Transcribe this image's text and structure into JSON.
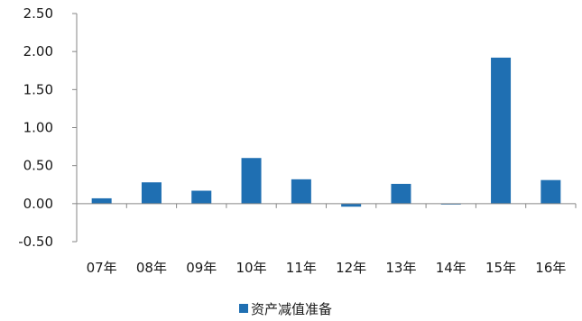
{
  "chart_data": {
    "type": "bar",
    "categories": [
      "07年",
      "08年",
      "09年",
      "10年",
      "11年",
      "12年",
      "13年",
      "14年",
      "15年",
      "16年"
    ],
    "series": [
      {
        "name": "资产减值准备",
        "color": "#1f6fb2",
        "values": [
          0.07,
          0.28,
          0.17,
          0.6,
          0.32,
          -0.04,
          0.26,
          -0.01,
          1.92,
          0.31
        ]
      }
    ],
    "y_ticks": [
      "2.50",
      "2.00",
      "1.50",
      "1.00",
      "0.50",
      "0.00",
      "-0.50"
    ],
    "ylim": [
      -0.5,
      2.5
    ],
    "grid": false,
    "legend_position": "bottom"
  }
}
